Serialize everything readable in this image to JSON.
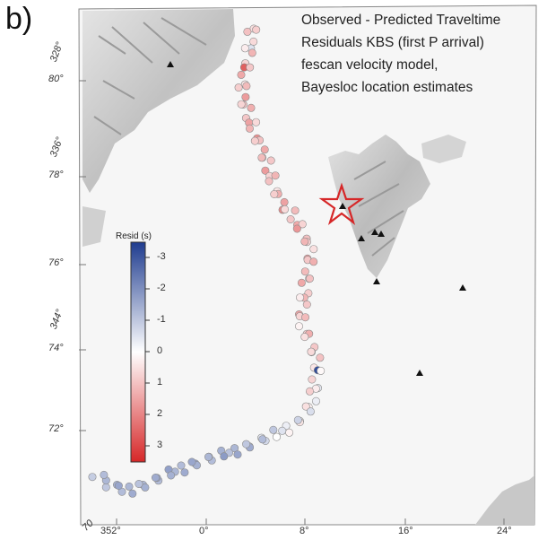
{
  "panel_label": "b)",
  "annotation": {
    "lines": [
      "Observed - Predicted Traveltime",
      "Residuals KBS  (first P arrival)",
      "fescan velocity model,",
      "Bayesloc location estimates"
    ]
  },
  "colorbar": {
    "title": "Resid (s)",
    "ticks": [
      "-3",
      "-2",
      "-1",
      "0",
      "1",
      "2",
      "3"
    ],
    "range": [
      -3.5,
      3.5
    ],
    "colors": {
      "negative": "#1f3c8f",
      "zero": "#ffffff",
      "positive": "#d62728"
    }
  },
  "axes": {
    "lat_labels": [
      "80°",
      "78°",
      "76°",
      "74°",
      "72°"
    ],
    "lon_bottom_labels": [
      "70",
      "352°",
      "0°",
      "8°",
      "16°",
      "24°"
    ],
    "lon_left_labels": [
      "328°",
      "336°",
      "344°"
    ]
  },
  "stations": {
    "symbol": "triangle-icon",
    "count": 8
  },
  "markers": {
    "star_color": "#d62728"
  },
  "events": {
    "resid": [
      0.5,
      0.8,
      1.0,
      0.6,
      -0.5,
      0.3,
      1.2,
      0.7,
      2.6,
      0.9,
      1.4,
      0.4,
      1.1,
      0.8,
      1.6,
      1.0,
      0.7,
      1.3,
      0.9,
      1.5,
      0.6,
      1.2,
      1.8,
      1.0,
      0.8,
      1.4,
      0.5,
      1.1,
      0.9,
      1.6,
      0.7,
      1.2,
      1.0,
      0.4,
      1.3,
      0.8,
      1.5,
      1.9,
      0.6,
      1.1,
      0.9,
      1.4,
      0.7,
      1.7,
      1.0,
      0.8,
      1.2,
      0.5,
      1.6,
      0.9,
      1.3,
      1.1,
      0.6,
      1.0,
      1.4,
      0.8,
      1.2,
      0.3,
      0.9,
      1.5,
      0.7,
      1.1,
      0.2,
      0.8,
      1.3,
      0.5,
      0.9,
      -0.2,
      0.6,
      1.0,
      0.4,
      -3.2,
      0.1,
      0.7,
      -0.4,
      0.3,
      0.8,
      -0.3,
      0.2,
      0.5,
      -0.6,
      0.0,
      0.4,
      -0.8,
      -0.3,
      0.2,
      -0.5,
      -1.0,
      0.0,
      -0.7,
      -0.4,
      -1.2,
      -0.8,
      -1.5,
      -1.0,
      -1.3,
      -1.6,
      -1.1,
      -1.4,
      -1.8,
      -1.2,
      -1.5,
      -1.3,
      -1.7,
      -1.4,
      -1.6,
      -1.2,
      -1.5,
      -1.3,
      -1.7,
      -1.4,
      -1.2,
      -1.6,
      -1.5,
      -1.3,
      -1.4,
      -1.1,
      -1.3,
      -1.5,
      -1.2,
      -1.4,
      -1.6,
      -1.0,
      -1.3,
      -1.2,
      -0.9
    ]
  }
}
